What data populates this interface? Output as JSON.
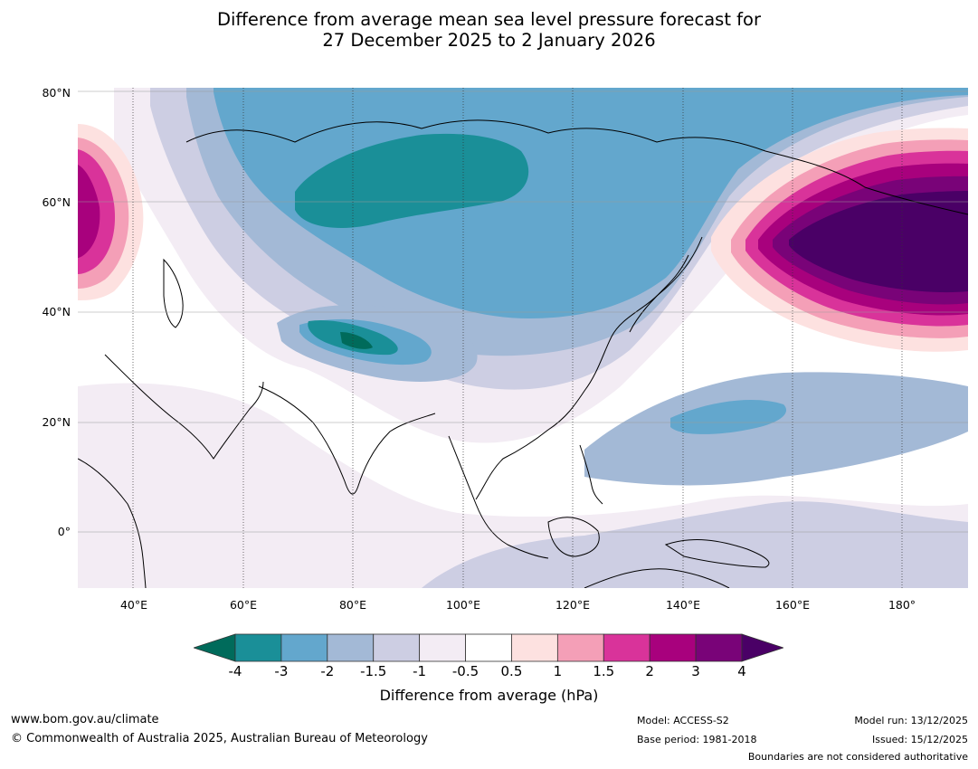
{
  "title": {
    "line1": "Difference from average mean sea level pressure forecast for",
    "line2": "27 December 2025 to 2 January 2026"
  },
  "map": {
    "region": "Asia and western Pacific",
    "lat_labels": [
      "80°N",
      "60°N",
      "40°N",
      "20°N",
      "0°"
    ],
    "lon_labels": [
      "40°E",
      "60°E",
      "80°E",
      "100°E",
      "120°E",
      "140°E",
      "160°E",
      "180°"
    ]
  },
  "colorbar": {
    "ticks": [
      "-4",
      "-3",
      "-2",
      "-1.5",
      "-1",
      "-0.5",
      "0.5",
      "1",
      "1.5",
      "2",
      "3",
      "4"
    ],
    "colors": [
      "#006b5b",
      "#1a8f98",
      "#63a7cd",
      "#a3b9d6",
      "#cdcee3",
      "#f3ecf4",
      "#ffffff",
      "#fde1e0",
      "#f49fb7",
      "#d9339a",
      "#a8017d",
      "#790378",
      "#4a0066"
    ],
    "label": "Difference from average (hPa)"
  },
  "footer": {
    "website": "www.bom.gov.au/climate",
    "copyright": "© Commonwealth of Australia 2025, Australian Bureau of Meteorology",
    "model": "Model: ACCESS-S2",
    "base_period": "Base period: 1981-2018",
    "model_run": "Model run: 13/12/2025",
    "issued": "Issued: 15/12/2025",
    "disclaimer": "Boundaries are not considered authoritative"
  }
}
